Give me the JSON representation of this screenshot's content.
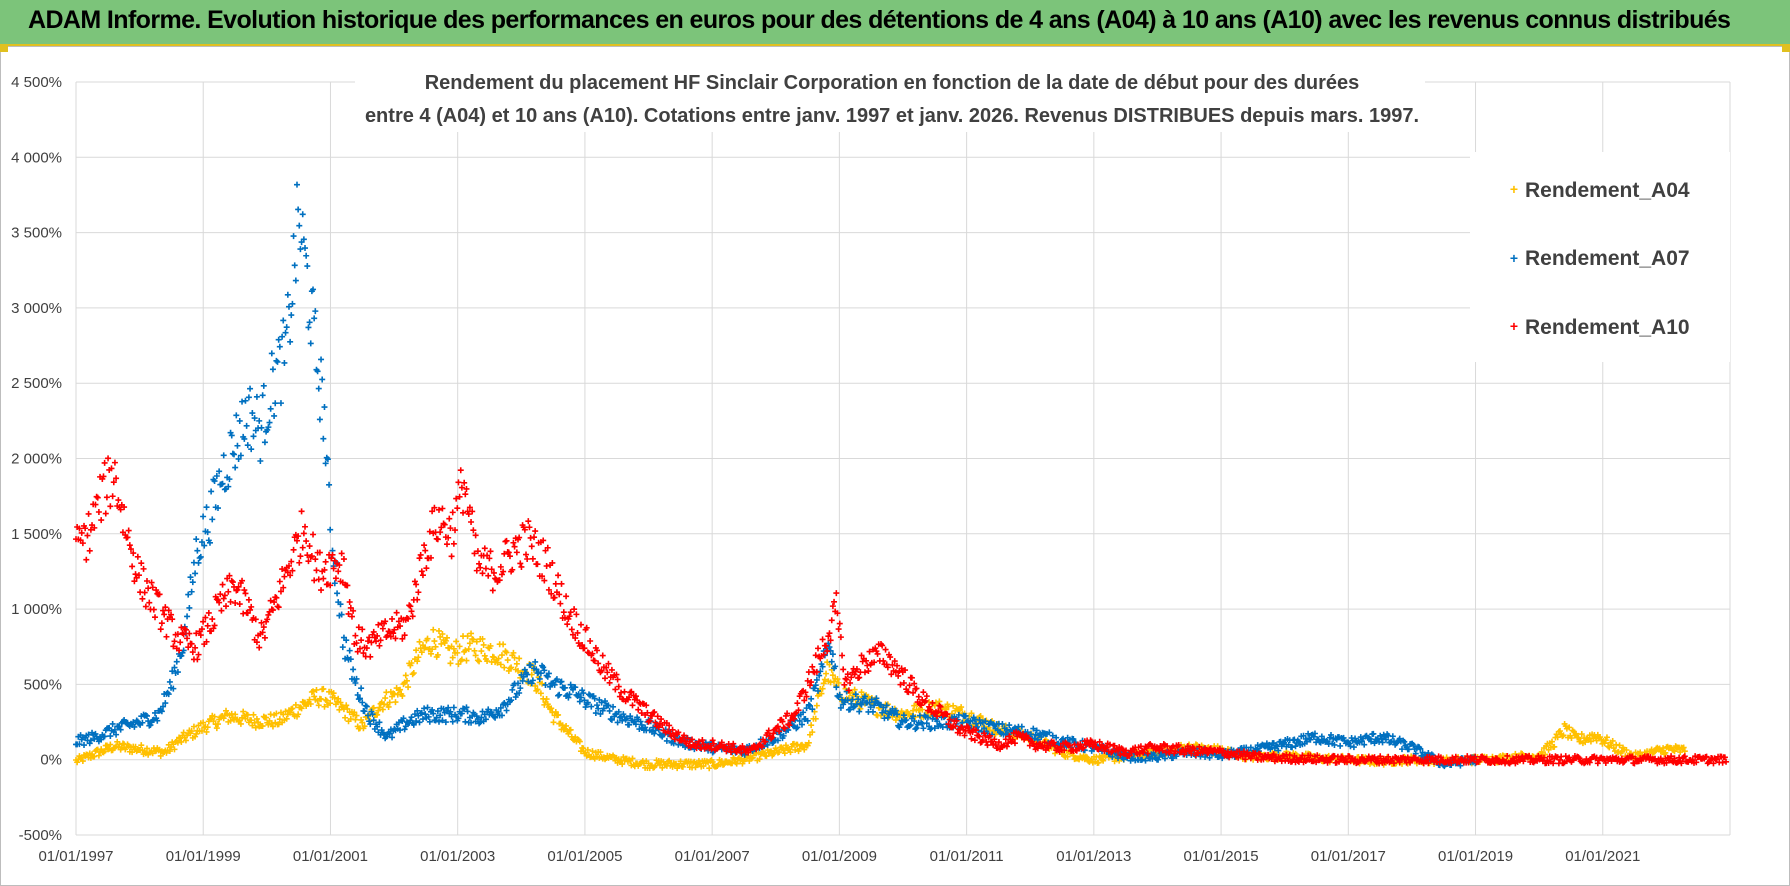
{
  "banner": {
    "title": "ADAM Informe. Evolution historique des performances en euros pour des détentions de 4 ans (A04) à 10 ans (A10) avec les revenus connus distribués"
  },
  "colors": {
    "A04": "#ffc000",
    "A07": "#0070c0",
    "A10": "#ff0000",
    "grid": "#d9d9d9",
    "banner": "#7cc47a"
  },
  "chart_data": {
    "type": "scatter",
    "title_line1": "Rendement du placement HF Sinclair Corporation en fonction de la date de début pour des durées",
    "title_line2": "entre 4 (A04) et 10 ans (A10).  Cotations entre janv. 1997 et janv. 2026. Revenus DISTRIBUES depuis mars. 1997.",
    "xlabel": "",
    "ylabel": "",
    "xlim": [
      1997.0,
      2023.0
    ],
    "ylim": [
      -500,
      4500
    ],
    "y_ticks": [
      {
        "value": -500,
        "label": "-500%"
      },
      {
        "value": 0,
        "label": "0%"
      },
      {
        "value": 500,
        "label": "500%"
      },
      {
        "value": 1000,
        "label": "1 000%"
      },
      {
        "value": 1500,
        "label": "1 500%"
      },
      {
        "value": 2000,
        "label": "2 000%"
      },
      {
        "value": 2500,
        "label": "2 500%"
      },
      {
        "value": 3000,
        "label": "3 000%"
      },
      {
        "value": 3500,
        "label": "3 500%"
      },
      {
        "value": 4000,
        "label": "4 000%"
      },
      {
        "value": 4500,
        "label": "4 500%"
      }
    ],
    "x_ticks": [
      {
        "value": 1997,
        "label": "01/01/1997"
      },
      {
        "value": 1999,
        "label": "01/01/1999"
      },
      {
        "value": 2001,
        "label": "01/01/2001"
      },
      {
        "value": 2003,
        "label": "01/01/2003"
      },
      {
        "value": 2005,
        "label": "01/01/2005"
      },
      {
        "value": 2007,
        "label": "01/01/2007"
      },
      {
        "value": 2009,
        "label": "01/01/2009"
      },
      {
        "value": 2011,
        "label": "01/01/2011"
      },
      {
        "value": 2013,
        "label": "01/01/2013"
      },
      {
        "value": 2015,
        "label": "01/01/2015"
      },
      {
        "value": 2017,
        "label": "01/01/2017"
      },
      {
        "value": 2019,
        "label": "01/01/2019"
      },
      {
        "value": 2021,
        "label": "01/01/2021"
      }
    ],
    "legend_position": "top-right",
    "series": [
      {
        "name": "Rendement_A04",
        "color": "#ffc000",
        "points": [
          [
            1997.0,
            -10
          ],
          [
            1997.3,
            40
          ],
          [
            1997.6,
            90
          ],
          [
            1998.0,
            70
          ],
          [
            1998.4,
            50
          ],
          [
            1998.6,
            120
          ],
          [
            1999.0,
            220
          ],
          [
            1999.4,
            290
          ],
          [
            1999.8,
            260
          ],
          [
            2000.2,
            260
          ],
          [
            2000.4,
            320
          ],
          [
            2000.8,
            420
          ],
          [
            2001.0,
            400
          ],
          [
            2001.3,
            300
          ],
          [
            2001.5,
            220
          ],
          [
            2001.8,
            380
          ],
          [
            2002.1,
            450
          ],
          [
            2002.4,
            700
          ],
          [
            2002.6,
            800
          ],
          [
            2002.9,
            700
          ],
          [
            2003.2,
            750
          ],
          [
            2003.6,
            720
          ],
          [
            2003.9,
            650
          ],
          [
            2004.2,
            550
          ],
          [
            2004.5,
            300
          ],
          [
            2004.8,
            150
          ],
          [
            2005.0,
            50
          ],
          [
            2005.5,
            0
          ],
          [
            2006.0,
            -30
          ],
          [
            2006.5,
            -30
          ],
          [
            2007.0,
            -30
          ],
          [
            2007.5,
            0
          ],
          [
            2008.0,
            50
          ],
          [
            2008.5,
            100
          ],
          [
            2008.8,
            600
          ],
          [
            2009.0,
            450
          ],
          [
            2009.3,
            400
          ],
          [
            2009.6,
            350
          ],
          [
            2010.0,
            300
          ],
          [
            2010.5,
            350
          ],
          [
            2011.0,
            300
          ],
          [
            2011.5,
            200
          ],
          [
            2012.0,
            150
          ],
          [
            2012.5,
            50
          ],
          [
            2013.0,
            0
          ],
          [
            2013.5,
            20
          ],
          [
            2014.0,
            50
          ],
          [
            2014.5,
            80
          ],
          [
            2015.0,
            60
          ],
          [
            2015.5,
            20
          ],
          [
            2016.0,
            30
          ],
          [
            2016.5,
            10
          ],
          [
            2017.0,
            0
          ],
          [
            2017.5,
            -10
          ],
          [
            2018.0,
            0
          ],
          [
            2018.5,
            -10
          ],
          [
            2019.0,
            0
          ],
          [
            2019.5,
            10
          ],
          [
            2020.0,
            30
          ],
          [
            2020.2,
            100
          ],
          [
            2020.4,
            200
          ],
          [
            2020.6,
            130
          ],
          [
            2020.9,
            160
          ],
          [
            2021.2,
            80
          ],
          [
            2021.5,
            20
          ],
          [
            2021.8,
            50
          ],
          [
            2022.0,
            70
          ],
          [
            2022.3,
            60
          ]
        ]
      },
      {
        "name": "Rendement_A07",
        "color": "#0070c0",
        "points": [
          [
            1997.0,
            120
          ],
          [
            1997.3,
            150
          ],
          [
            1997.6,
            200
          ],
          [
            1998.0,
            250
          ],
          [
            1998.3,
            300
          ],
          [
            1998.5,
            500
          ],
          [
            1998.7,
            800
          ],
          [
            1998.9,
            1400
          ],
          [
            1999.1,
            1600
          ],
          [
            1999.3,
            1900
          ],
          [
            1999.5,
            2100
          ],
          [
            1999.7,
            2300
          ],
          [
            1999.9,
            2200
          ],
          [
            2000.1,
            2500
          ],
          [
            2000.3,
            2700
          ],
          [
            2000.5,
            3600
          ],
          [
            2000.6,
            3300
          ],
          [
            2000.8,
            2600
          ],
          [
            2000.9,
            2300
          ],
          [
            2001.0,
            1500
          ],
          [
            2001.1,
            1200
          ],
          [
            2001.2,
            800
          ],
          [
            2001.4,
            500
          ],
          [
            2001.6,
            300
          ],
          [
            2001.9,
            150
          ],
          [
            2002.2,
            250
          ],
          [
            2002.5,
            300
          ],
          [
            2002.8,
            300
          ],
          [
            2003.1,
            300
          ],
          [
            2003.4,
            280
          ],
          [
            2003.7,
            350
          ],
          [
            2004.0,
            500
          ],
          [
            2004.2,
            600
          ],
          [
            2004.5,
            500
          ],
          [
            2004.8,
            450
          ],
          [
            2005.0,
            400
          ],
          [
            2005.5,
            300
          ],
          [
            2006.0,
            220
          ],
          [
            2006.5,
            120
          ],
          [
            2007.0,
            80
          ],
          [
            2007.5,
            60
          ],
          [
            2008.0,
            150
          ],
          [
            2008.5,
            300
          ],
          [
            2008.7,
            550
          ],
          [
            2008.85,
            800
          ],
          [
            2009.0,
            400
          ],
          [
            2009.3,
            380
          ],
          [
            2009.6,
            350
          ],
          [
            2010.0,
            250
          ],
          [
            2010.5,
            250
          ],
          [
            2011.0,
            250
          ],
          [
            2011.5,
            200
          ],
          [
            2012.0,
            180
          ],
          [
            2012.5,
            120
          ],
          [
            2013.0,
            80
          ],
          [
            2013.5,
            20
          ],
          [
            2014.0,
            20
          ],
          [
            2014.5,
            50
          ],
          [
            2015.0,
            30
          ],
          [
            2015.5,
            60
          ],
          [
            2016.0,
            100
          ],
          [
            2016.5,
            150
          ],
          [
            2017.0,
            110
          ],
          [
            2017.5,
            150
          ],
          [
            2018.0,
            80
          ],
          [
            2018.5,
            -30
          ],
          [
            2019.0,
            0
          ]
        ]
      },
      {
        "name": "Rendement_A10",
        "color": "#ff0000",
        "points": [
          [
            1997.0,
            1400
          ],
          [
            1997.2,
            1500
          ],
          [
            1997.4,
            1750
          ],
          [
            1997.6,
            1900
          ],
          [
            1997.8,
            1500
          ],
          [
            1998.0,
            1200
          ],
          [
            1998.3,
            1000
          ],
          [
            1998.6,
            800
          ],
          [
            1998.9,
            750
          ],
          [
            1999.1,
            900
          ],
          [
            1999.3,
            1050
          ],
          [
            1999.5,
            1150
          ],
          [
            1999.7,
            1000
          ],
          [
            1999.9,
            800
          ],
          [
            2000.1,
            1000
          ],
          [
            2000.4,
            1350
          ],
          [
            2000.6,
            1550
          ],
          [
            2000.8,
            1250
          ],
          [
            2001.0,
            1300
          ],
          [
            2001.2,
            1300
          ],
          [
            2001.4,
            800
          ],
          [
            2001.6,
            750
          ],
          [
            2001.9,
            850
          ],
          [
            2002.2,
            900
          ],
          [
            2002.5,
            1400
          ],
          [
            2002.7,
            1600
          ],
          [
            2002.9,
            1500
          ],
          [
            2003.1,
            1850
          ],
          [
            2003.3,
            1300
          ],
          [
            2003.6,
            1250
          ],
          [
            2003.9,
            1400
          ],
          [
            2004.1,
            1450
          ],
          [
            2004.4,
            1300
          ],
          [
            2004.7,
            1000
          ],
          [
            2005.0,
            800
          ],
          [
            2005.3,
            600
          ],
          [
            2005.6,
            450
          ],
          [
            2006.0,
            300
          ],
          [
            2006.3,
            200
          ],
          [
            2006.7,
            100
          ],
          [
            2007.0,
            100
          ],
          [
            2007.3,
            80
          ],
          [
            2007.6,
            50
          ],
          [
            2008.0,
            200
          ],
          [
            2008.3,
            300
          ],
          [
            2008.6,
            600
          ],
          [
            2008.8,
            800
          ],
          [
            2008.95,
            1000
          ],
          [
            2009.1,
            500
          ],
          [
            2009.4,
            650
          ],
          [
            2009.7,
            700
          ],
          [
            2010.0,
            550
          ],
          [
            2010.3,
            400
          ],
          [
            2010.6,
            300
          ],
          [
            2010.9,
            200
          ],
          [
            2011.2,
            150
          ],
          [
            2011.5,
            100
          ],
          [
            2011.8,
            150
          ],
          [
            2012.1,
            100
          ],
          [
            2012.5,
            80
          ],
          [
            2013.0,
            100
          ],
          [
            2013.5,
            50
          ],
          [
            2014.0,
            80
          ],
          [
            2014.5,
            60
          ],
          [
            2015.0,
            50
          ],
          [
            2015.5,
            20
          ],
          [
            2016.0,
            10
          ],
          [
            2017.0,
            0
          ],
          [
            2018.0,
            0
          ],
          [
            2019.0,
            0
          ],
          [
            2020.0,
            0
          ],
          [
            2021.0,
            0
          ],
          [
            2022.0,
            0
          ],
          [
            2022.95,
            0
          ]
        ]
      }
    ]
  }
}
